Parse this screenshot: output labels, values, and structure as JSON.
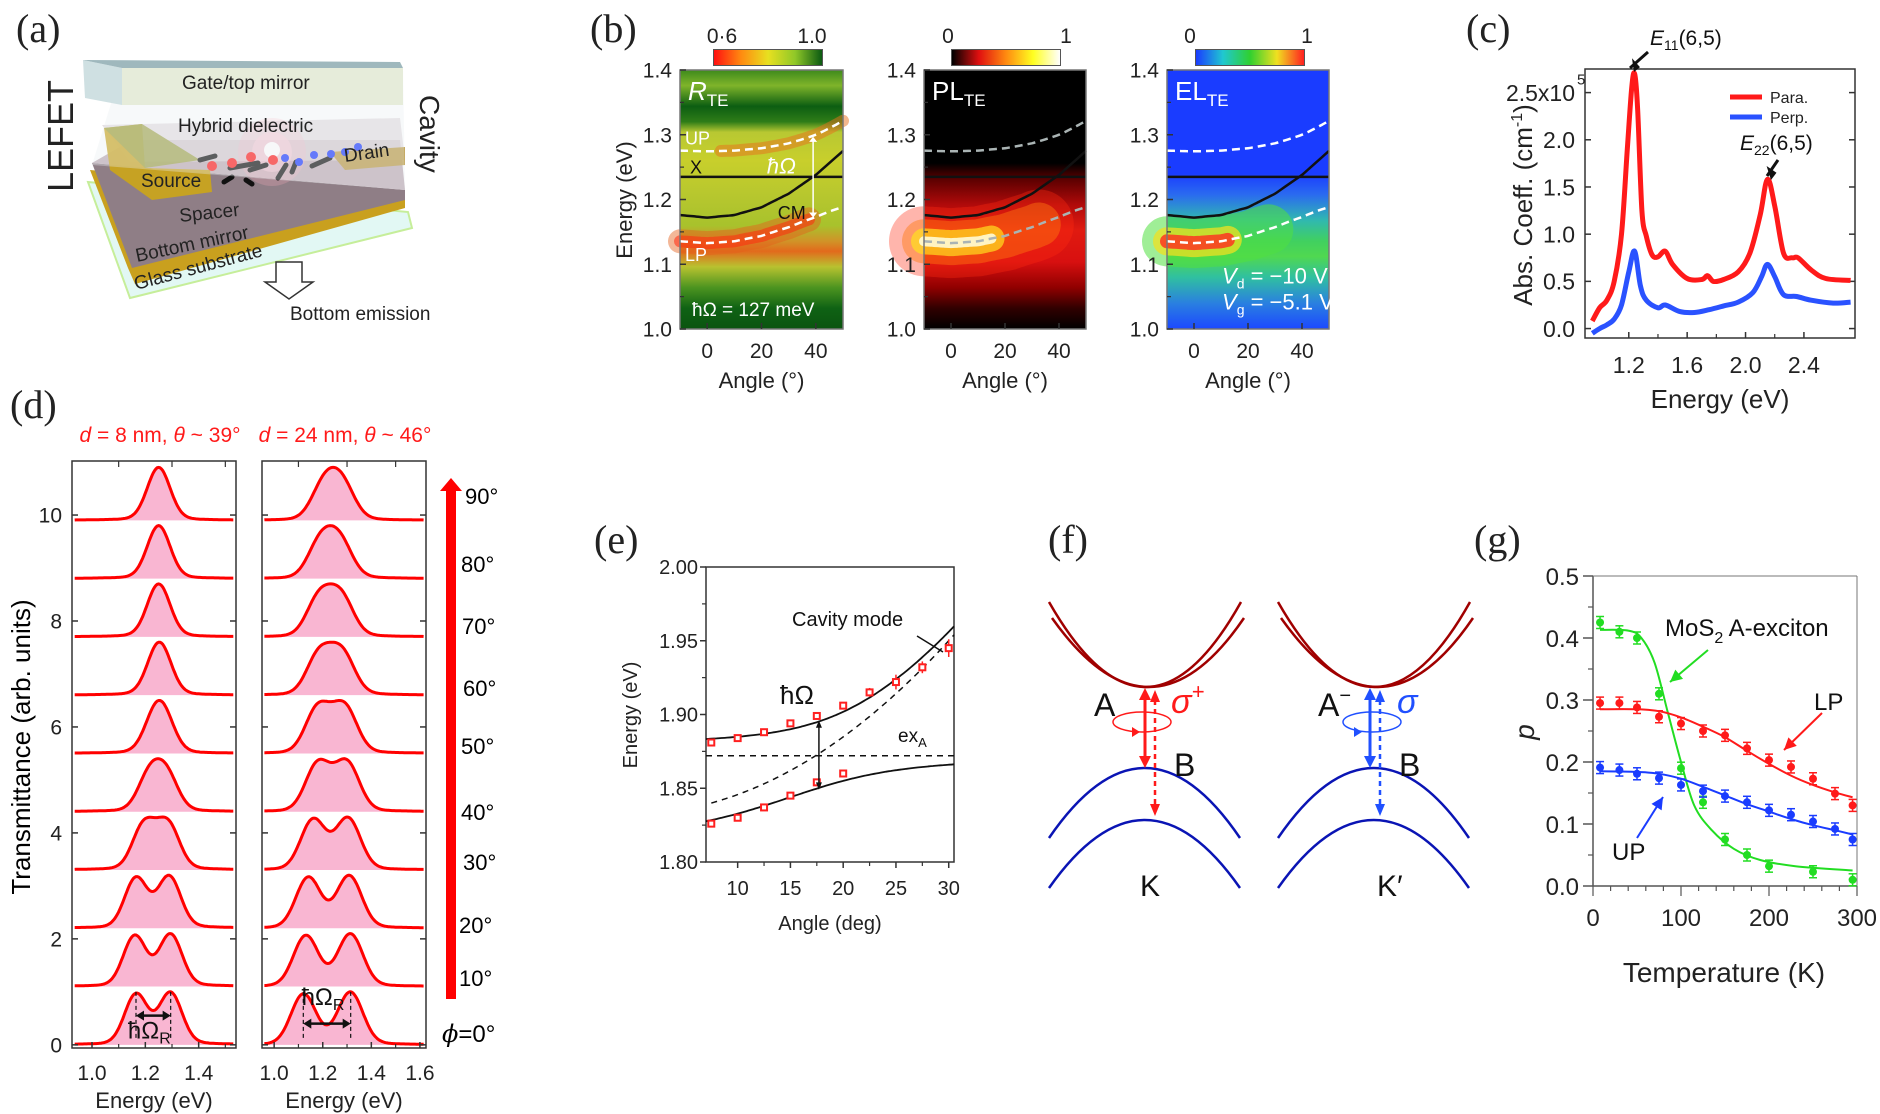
{
  "panel_labels": {
    "a": "(a)",
    "b": "(b)",
    "c": "(c)",
    "d": "(d)",
    "e": "(e)",
    "f": "(f)",
    "g": "(g)"
  },
  "panel_a": {
    "gate": "Gate/top mirror",
    "hybrid": "Hybrid dielectric",
    "source": "Source",
    "drain": "Drain",
    "spacer": "Spacer",
    "bottom_mirror": "Bottom mirror",
    "glass": "Glass substrate",
    "emission": "Bottom emission",
    "lefet": "LEFET",
    "cavity": "Cavity",
    "colors": {
      "electrons": "#1f3cff",
      "holes": "#ff2020",
      "electrodes": "#c9a41e"
    }
  },
  "panel_d": {
    "ylabel": "Transmittance (arb. units)",
    "angle_labels": [
      "90°",
      "80°",
      "70°",
      "60°",
      "50°",
      "40°",
      "30°",
      "20°",
      "10°"
    ],
    "phi_symbol": "ϕ",
    "phi_value": "=0°",
    "rabi_symbol": "ħΩ",
    "rabi_sub": "R",
    "color": "#ff0000",
    "fill": "#f9b6d2"
  },
  "panel_f": {
    "A": "A",
    "sigma_plus": "σ",
    "sigma_plus_sup": "+",
    "B_left": "B",
    "K": "K",
    "A_minus": "A",
    "A_minus_sup": "−",
    "sigma_minus": "σ",
    "B_right": "B",
    "K_prime": "K′",
    "colors": {
      "conduction": "#a00000",
      "valence": "#0a14b4",
      "left_arrows": "#ff1a1a",
      "right_arrows": "#2050ff"
    }
  },
  "chart_data": [
    {
      "panel": "b",
      "type": "heatmap",
      "title": "R",
      "title_sub": "TE",
      "colorbar": {
        "min_label": "0·6",
        "max_label": "1.0",
        "colors": [
          "#ff1010",
          "#ff8a10",
          "#e8e020",
          "#90c828",
          "#0b5a12"
        ]
      },
      "xlabel": "Angle (°)",
      "ylabel": "Energy (eV)",
      "xlim": [
        -10,
        50
      ],
      "ylim": [
        1.0,
        1.4
      ],
      "xticks": [
        0,
        20,
        40
      ],
      "xtick_labels": [
        "0",
        "20",
        "40"
      ],
      "yticks": [
        1.0,
        1.1,
        1.2,
        1.3,
        1.4
      ],
      "ytick_labels": [
        "1.0",
        "1.1",
        "1.2",
        "1.3",
        "1.4"
      ],
      "exciton_eV": 1.235,
      "cavity_mode": {
        "angle": [
          -10,
          0,
          10,
          20,
          30,
          40,
          50
        ],
        "energy": [
          1.176,
          1.172,
          1.176,
          1.188,
          1.209,
          1.238,
          1.275
        ]
      },
      "rabi_splitting_meV": 127,
      "curve_labels": {
        "up": "UP",
        "x": "X",
        "cm": "CM",
        "lp": "LP"
      },
      "annotation": "ħΩ",
      "annotation_value": "ħΩ = 127 meV"
    },
    {
      "panel": "b",
      "type": "heatmap",
      "title": "PL",
      "title_sub": "TE",
      "colorbar": {
        "min_label": "0",
        "max_label": "1",
        "colors": [
          "#000000",
          "#e01010",
          "#ff8a10",
          "#ffff20",
          "#ffffff"
        ]
      },
      "xlabel": "Angle (°)",
      "xlim": [
        -10,
        50
      ],
      "ylim": [
        1.0,
        1.4
      ],
      "xticks": [
        0,
        20,
        40
      ],
      "xtick_labels": [
        "0",
        "20",
        "40"
      ],
      "yticks": [
        1.0,
        1.1,
        1.2,
        1.3,
        1.4
      ],
      "ytick_labels": [
        "1.0",
        "1.1",
        "1.2",
        "1.3",
        "1.4"
      ],
      "exciton_eV": 1.235,
      "cavity_mode": {
        "angle": [
          -10,
          0,
          10,
          20,
          30,
          40,
          50
        ],
        "energy": [
          1.176,
          1.172,
          1.176,
          1.188,
          1.209,
          1.238,
          1.275
        ]
      },
      "rabi_splitting_meV": 127
    },
    {
      "panel": "b",
      "type": "heatmap",
      "title": "EL",
      "title_sub": "TE",
      "colorbar": {
        "min_label": "0",
        "max_label": "1",
        "colors": [
          "#1a3cff",
          "#20c8d0",
          "#30d030",
          "#f0e020",
          "#ff2020"
        ]
      },
      "xlabel": "Angle (°)",
      "xlim": [
        -10,
        50
      ],
      "ylim": [
        1.0,
        1.4
      ],
      "xticks": [
        0,
        20,
        40
      ],
      "xtick_labels": [
        "0",
        "20",
        "40"
      ],
      "yticks": [
        1.0,
        1.1,
        1.2,
        1.3,
        1.4
      ],
      "ytick_labels": [
        "1.0",
        "1.1",
        "1.2",
        "1.3",
        "1.4"
      ],
      "exciton_eV": 1.235,
      "cavity_mode": {
        "angle": [
          -10,
          0,
          10,
          20,
          30,
          40,
          50
        ],
        "energy": [
          1.176,
          1.172,
          1.176,
          1.188,
          1.209,
          1.238,
          1.275
        ]
      },
      "rabi_splitting_meV": 127,
      "vd": {
        "symbol": "V",
        "sub": "d",
        "value": " = −10 V"
      },
      "vg": {
        "symbol": "V",
        "sub": "g",
        "value": " = −5.1 V"
      }
    },
    {
      "panel": "c",
      "type": "line",
      "xlabel": "Energy (eV)",
      "ylabel_main": "Abs. Coeff. (cm",
      "ylabel_sup": "-1",
      "ylabel_end": ")",
      "xlim": [
        0.9,
        2.75
      ],
      "ylim": [
        -0.1,
        2.75
      ],
      "xticks": [
        1.2,
        1.6,
        2.0,
        2.4
      ],
      "xtick_labels": [
        "1.2",
        "1.6",
        "2.0",
        "2.4"
      ],
      "yticks": [
        0,
        0.5,
        1.0,
        1.5,
        2.0,
        2.5
      ],
      "ytick_labels": [
        "0.0",
        "0.5",
        "1.0",
        "1.5",
        "2.0",
        "2.5x10"
      ],
      "ytick_top_sup": "5",
      "series": [
        {
          "name": "Para.",
          "color": "#ff1a1a",
          "x": [
            0.95,
            1.0,
            1.05,
            1.1,
            1.15,
            1.19,
            1.22,
            1.24,
            1.26,
            1.29,
            1.32,
            1.36,
            1.4,
            1.45,
            1.5,
            1.6,
            1.7,
            1.74,
            1.78,
            1.85,
            1.95,
            2.03,
            2.1,
            2.15,
            2.2,
            2.26,
            2.32,
            2.36,
            2.45,
            2.55,
            2.72
          ],
          "y": [
            0.08,
            0.22,
            0.3,
            0.5,
            1.0,
            1.9,
            2.55,
            2.7,
            2.35,
            1.25,
            0.98,
            0.78,
            0.76,
            0.82,
            0.68,
            0.53,
            0.52,
            0.56,
            0.5,
            0.52,
            0.6,
            0.8,
            1.2,
            1.58,
            1.3,
            0.8,
            0.75,
            0.75,
            0.62,
            0.53,
            0.51
          ]
        },
        {
          "name": "Perp.",
          "color": "#2a52ff",
          "x": [
            0.95,
            1.0,
            1.05,
            1.1,
            1.15,
            1.2,
            1.24,
            1.28,
            1.32,
            1.4,
            1.45,
            1.55,
            1.65,
            1.75,
            1.85,
            1.95,
            2.05,
            2.11,
            2.15,
            2.2,
            2.26,
            2.35,
            2.45,
            2.6,
            2.72
          ],
          "y": [
            -0.05,
            0.0,
            0.04,
            0.1,
            0.25,
            0.6,
            0.82,
            0.45,
            0.3,
            0.22,
            0.25,
            0.18,
            0.17,
            0.2,
            0.24,
            0.28,
            0.38,
            0.55,
            0.68,
            0.55,
            0.36,
            0.34,
            0.3,
            0.27,
            0.28
          ]
        }
      ],
      "legend_position": "top-right",
      "annotations": [
        {
          "main": "E",
          "sub": "11",
          "end": "(6,5)",
          "x": 1.24,
          "y": 2.7
        },
        {
          "main": "E",
          "sub": "22",
          "end": "(6,5)",
          "x": 2.15,
          "y": 1.58
        }
      ]
    },
    {
      "panel": "d",
      "type": "line",
      "stacked": true,
      "title_var": "d",
      "title_mid": " = 8 nm, ",
      "title_theta": "θ",
      "title_end": " ~ 39°",
      "xlabel": "Energy (eV)",
      "xlim": [
        0.925,
        1.54
      ],
      "ylim": [
        -0.06,
        11.02
      ],
      "xticks": [
        1.0,
        1.2,
        1.4
      ],
      "xtick_labels": [
        "1.0",
        "1.2",
        "1.4"
      ],
      "minor_xticks": [
        1.1,
        1.3,
        1.5
      ],
      "yticks": [
        0,
        2,
        4,
        6,
        8,
        10
      ],
      "ytick_labels": [
        "0",
        "2",
        "4",
        "6",
        "8",
        "10"
      ],
      "series": [
        {
          "angle_deg": 0,
          "offset": 0.0,
          "peaks_eV": [
            1.165,
            1.295
          ]
        },
        {
          "angle_deg": 10,
          "offset": 1.1,
          "peaks_eV": [
            1.16,
            1.295
          ]
        },
        {
          "angle_deg": 20,
          "offset": 2.2,
          "peaks_eV": [
            1.165,
            1.29
          ]
        },
        {
          "angle_deg": 30,
          "offset": 3.3,
          "peaks_eV": [
            1.195,
            1.285
          ]
        },
        {
          "angle_deg": 40,
          "offset": 4.4,
          "peaks_eV": [
            1.215,
            1.28
          ]
        },
        {
          "angle_deg": 50,
          "offset": 5.5,
          "peaks_eV": [
            1.235,
            1.27
          ]
        },
        {
          "angle_deg": 60,
          "offset": 6.6,
          "peaks_eV": [
            1.245,
            1.26
          ]
        },
        {
          "angle_deg": 70,
          "offset": 7.7,
          "peaks_eV": [
            1.25,
            1.25
          ]
        },
        {
          "angle_deg": 80,
          "offset": 8.8,
          "peaks_eV": [
            1.25,
            1.25
          ]
        },
        {
          "angle_deg": 90,
          "offset": 9.9,
          "peaks_eV": [
            1.25,
            1.25
          ]
        }
      ]
    },
    {
      "panel": "d",
      "type": "line",
      "stacked": true,
      "title_var": "d",
      "title_mid": " = 24 nm, ",
      "title_theta": "θ",
      "title_end": " ~ 46°",
      "xlabel": "Energy (eV)",
      "xlim": [
        0.95,
        1.625
      ],
      "ylim": [
        -0.06,
        11.02
      ],
      "xticks": [
        1.0,
        1.2,
        1.4,
        1.6
      ],
      "xtick_labels": [
        "1.0",
        "1.2",
        "1.4",
        "1.6"
      ],
      "minor_xticks": [
        1.1,
        1.3,
        1.5
      ],
      "yticks": [
        0,
        2,
        4,
        6,
        8,
        10
      ],
      "ytick_labels": [],
      "series": [
        {
          "angle_deg": 0,
          "offset": 0.0,
          "peaks_eV": [
            1.12,
            1.315
          ]
        },
        {
          "angle_deg": 10,
          "offset": 1.1,
          "peaks_eV": [
            1.13,
            1.315
          ]
        },
        {
          "angle_deg": 20,
          "offset": 2.2,
          "peaks_eV": [
            1.14,
            1.31
          ]
        },
        {
          "angle_deg": 30,
          "offset": 3.3,
          "peaks_eV": [
            1.16,
            1.305
          ]
        },
        {
          "angle_deg": 40,
          "offset": 4.4,
          "peaks_eV": [
            1.18,
            1.3
          ]
        },
        {
          "angle_deg": 50,
          "offset": 5.5,
          "peaks_eV": [
            1.18,
            1.29
          ]
        },
        {
          "angle_deg": 60,
          "offset": 6.6,
          "peaks_eV": [
            1.185,
            1.28
          ]
        },
        {
          "angle_deg": 70,
          "offset": 7.7,
          "peaks_eV": [
            1.185,
            1.275
          ]
        },
        {
          "angle_deg": 80,
          "offset": 8.8,
          "peaks_eV": [
            1.19,
            1.27
          ]
        },
        {
          "angle_deg": 90,
          "offset": 9.9,
          "peaks_eV": [
            1.205,
            1.28
          ]
        }
      ]
    },
    {
      "panel": "e",
      "type": "scatter",
      "xlabel": "Angle (deg)",
      "ylabel": "Energy (eV)",
      "xlim": [
        7,
        30.5
      ],
      "ylim": [
        1.8,
        2.0
      ],
      "xticks": [
        10,
        15,
        20,
        25,
        30
      ],
      "xtick_labels": [
        "10",
        "15",
        "20",
        "25",
        "30"
      ],
      "yticks": [
        1.8,
        1.85,
        1.9,
        1.95,
        2.0
      ],
      "ytick_labels": [
        "1.80",
        "1.85",
        "1.90",
        "1.95",
        "2.00"
      ],
      "series": [
        {
          "name": "upper",
          "color": "#ff2020",
          "x": [
            7.5,
            10,
            12.5,
            15,
            17.5,
            20,
            22.5,
            25,
            27.5,
            30
          ],
          "y": [
            1.881,
            1.884,
            1.888,
            1.894,
            1.899,
            1.906,
            1.915,
            1.922,
            1.932,
            1.945
          ],
          "err": [
            0.002,
            0.002,
            0.002,
            0.002,
            0.002,
            0.002,
            0.003,
            0.005,
            0.004,
            0.006
          ]
        },
        {
          "name": "lower",
          "color": "#ff2020",
          "x": [
            7.5,
            10,
            12.5,
            15,
            17.5,
            20
          ],
          "y": [
            1.826,
            1.83,
            1.837,
            1.845,
            1.854,
            1.86
          ],
          "err": [
            0.002,
            0.002,
            0.002,
            0.002,
            0.002,
            0.002
          ]
        }
      ],
      "exciton_eV": 1.872,
      "cavity_mode": {
        "angle": [
          7.5,
          30
        ],
        "energy": [
          1.84,
          1.95
        ]
      },
      "rabi_splitting_eV": 0.045,
      "labels": {
        "cavity": "Cavity mode",
        "rabi": "ħΩ",
        "exciton": "ex",
        "exciton_sub": "A"
      }
    },
    {
      "panel": "g",
      "type": "scatter",
      "xlabel": "Temperature (K)",
      "ylabel": "p",
      "xlim": [
        0,
        300
      ],
      "ylim": [
        0,
        0.5
      ],
      "xticks": [
        0,
        100,
        200,
        300
      ],
      "xtick_labels": [
        "0",
        "100",
        "200",
        "300"
      ],
      "yticks": [
        0,
        0.1,
        0.2,
        0.3,
        0.4,
        0.5
      ],
      "ytick_labels": [
        "0.0",
        "0.1",
        "0.2",
        "0.3",
        "0.4",
        "0.5"
      ],
      "series": [
        {
          "name": "MoS",
          "name_sub": "2",
          "name_end": " A-exciton",
          "color": "#22dd22",
          "x": [
            8,
            30,
            50,
            75,
            100,
            125,
            150,
            175,
            200,
            250,
            295
          ],
          "y": [
            0.425,
            0.41,
            0.4,
            0.31,
            0.19,
            0.135,
            0.075,
            0.05,
            0.032,
            0.023,
            0.01
          ],
          "fit_x": [
            8,
            40,
            55,
            70,
            85,
            100,
            115,
            135,
            160,
            190,
            230,
            295
          ],
          "fit_y": [
            0.413,
            0.412,
            0.4,
            0.36,
            0.28,
            0.2,
            0.13,
            0.09,
            0.06,
            0.042,
            0.032,
            0.025
          ]
        },
        {
          "name": "LP",
          "color": "#ff1a1a",
          "x": [
            8,
            30,
            50,
            75,
            100,
            125,
            150,
            175,
            200,
            225,
            250,
            275,
            295
          ],
          "y": [
            0.295,
            0.295,
            0.288,
            0.273,
            0.262,
            0.25,
            0.243,
            0.222,
            0.203,
            0.192,
            0.173,
            0.149,
            0.13
          ],
          "fit_x": [
            8,
            50,
            75,
            100,
            125,
            150,
            175,
            200,
            225,
            250,
            275,
            295
          ],
          "fit_y": [
            0.285,
            0.285,
            0.282,
            0.272,
            0.257,
            0.24,
            0.218,
            0.197,
            0.178,
            0.163,
            0.151,
            0.143
          ]
        },
        {
          "name": "UP",
          "color": "#1a3cff",
          "x": [
            8,
            30,
            50,
            75,
            100,
            125,
            150,
            175,
            200,
            225,
            250,
            275,
            295
          ],
          "y": [
            0.191,
            0.187,
            0.181,
            0.174,
            0.163,
            0.153,
            0.145,
            0.135,
            0.122,
            0.115,
            0.104,
            0.092,
            0.075
          ],
          "fit_x": [
            8,
            50,
            75,
            100,
            125,
            150,
            175,
            200,
            225,
            250,
            275,
            295
          ],
          "fit_y": [
            0.185,
            0.184,
            0.181,
            0.173,
            0.16,
            0.146,
            0.132,
            0.12,
            0.108,
            0.098,
            0.09,
            0.083
          ]
        }
      ]
    }
  ]
}
